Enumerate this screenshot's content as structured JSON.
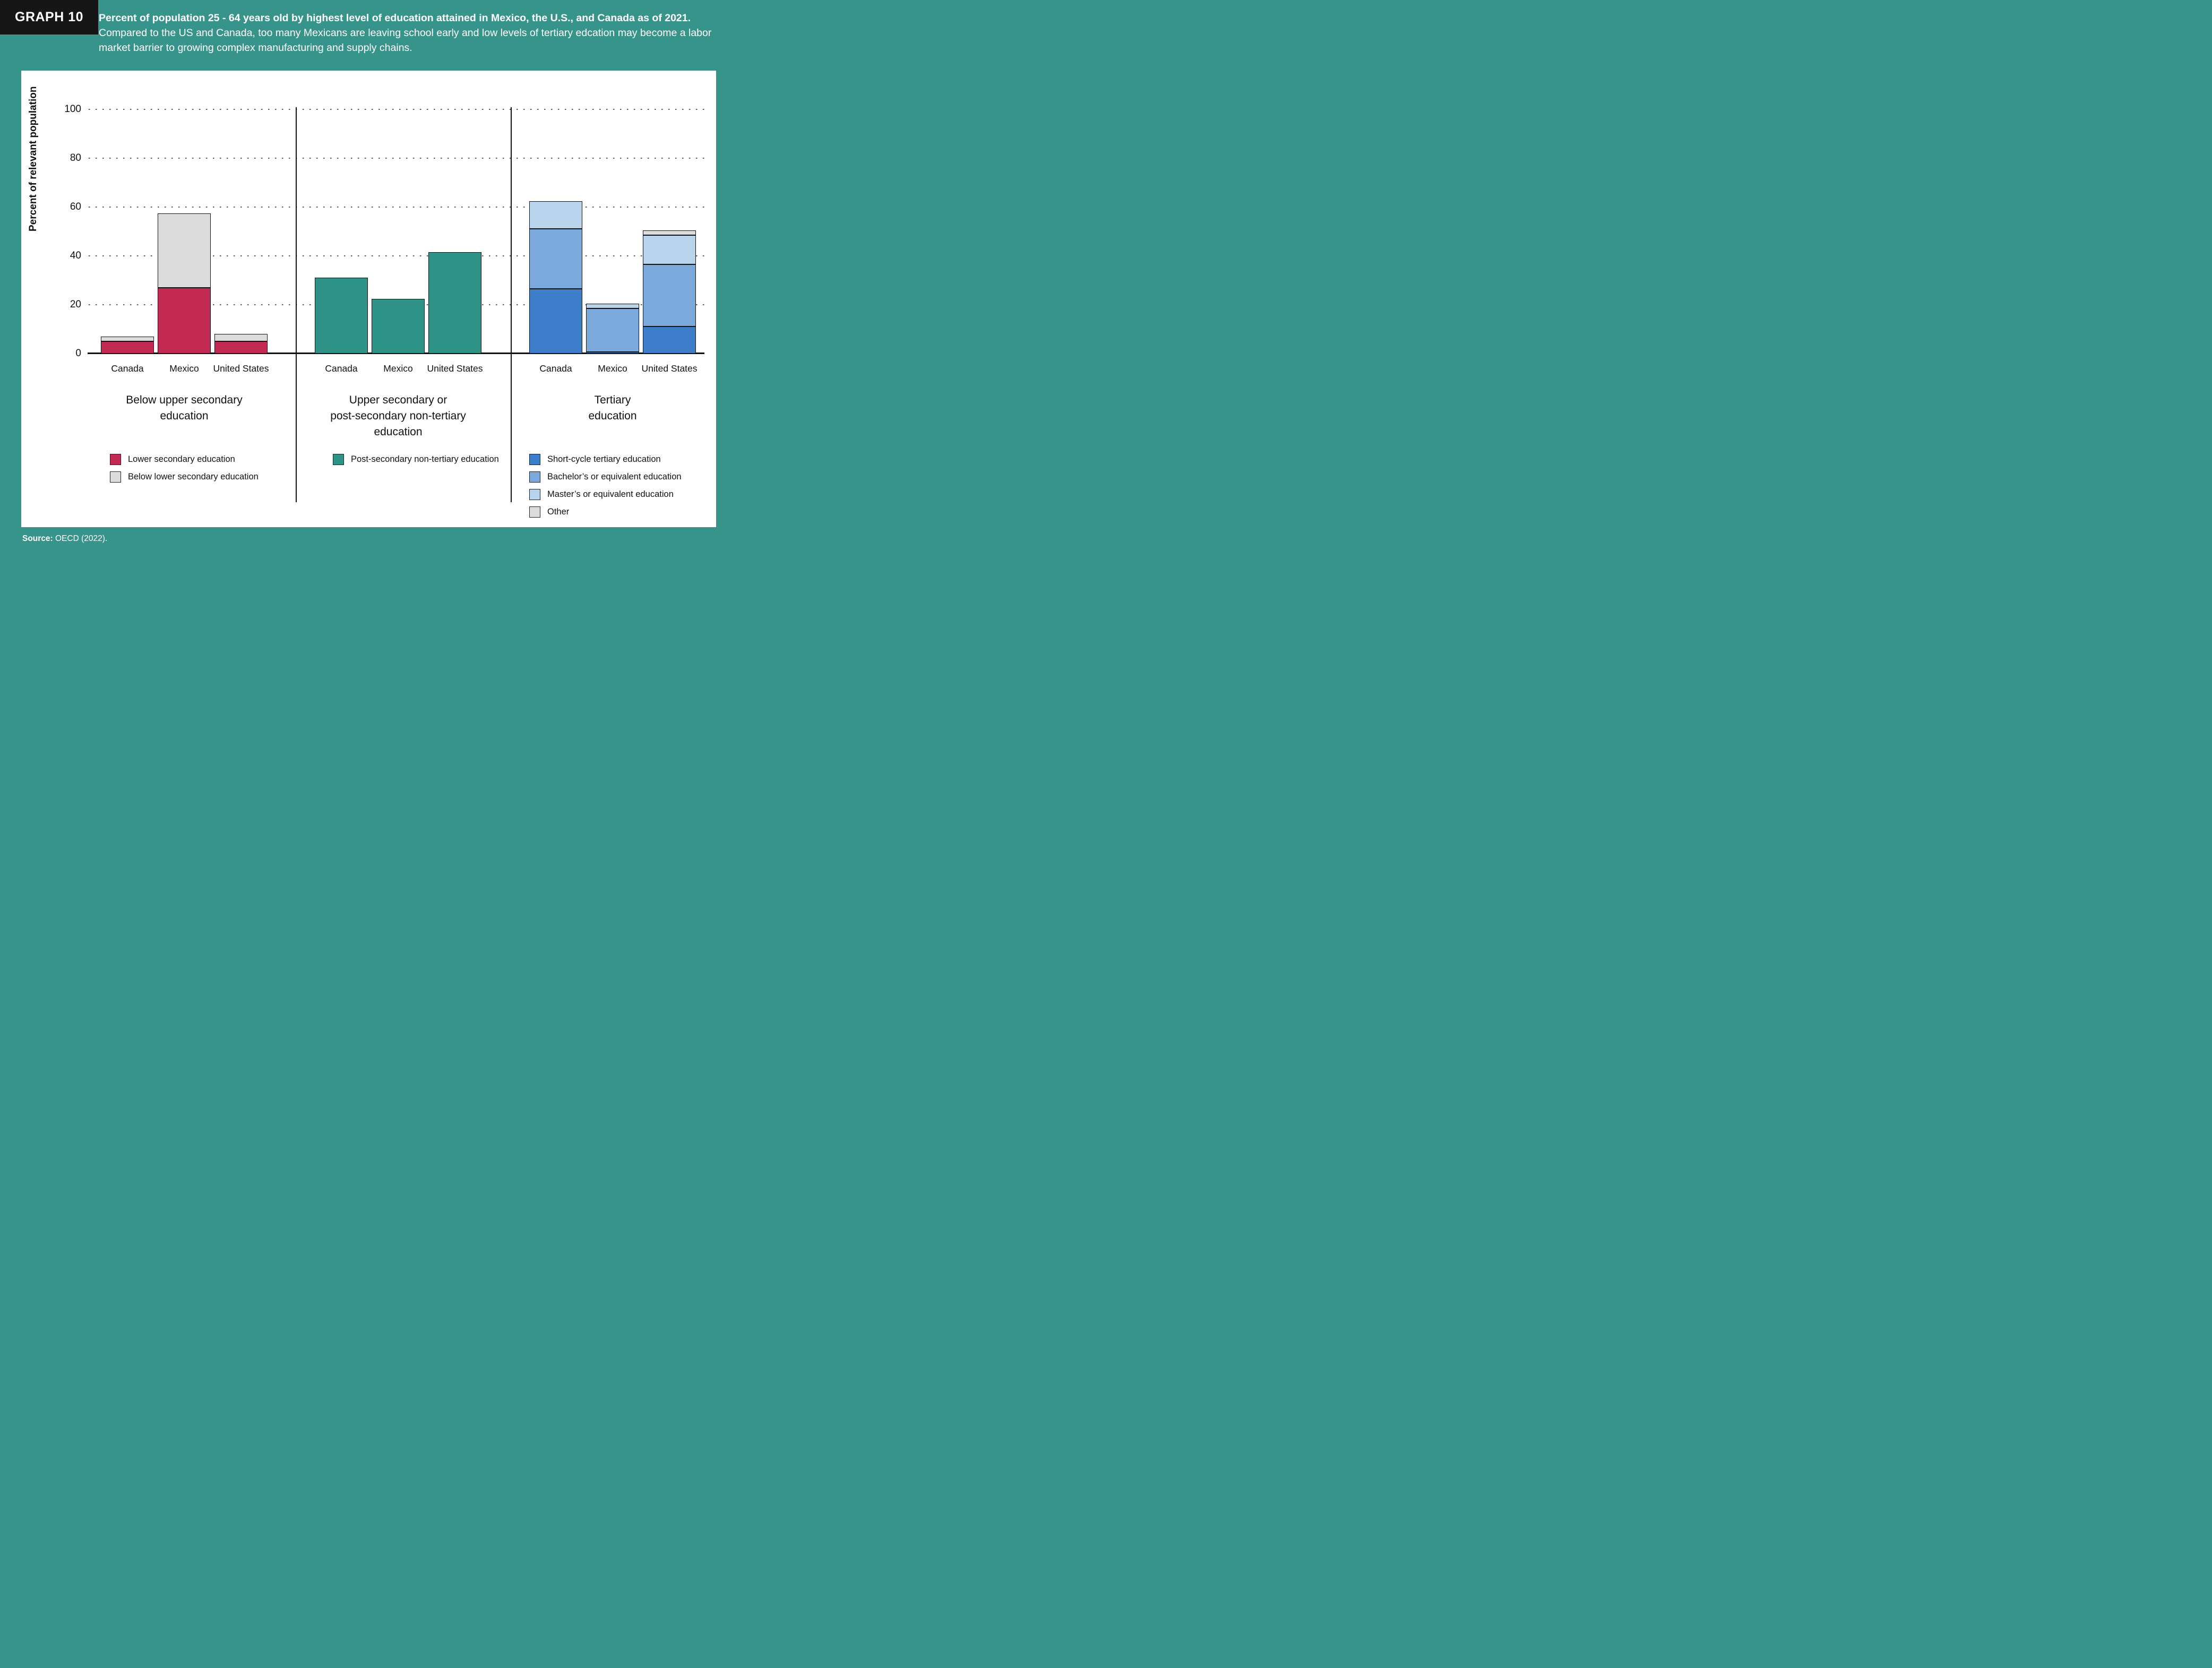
{
  "header": {
    "badge": "GRAPH 10",
    "title_bold": "Percent of population 25 - 64 years old by highest level of education attained in Mexico, the U.S., and Canada as of 2021.",
    "title_rest": " Compared to the US and Canada, too many Mexicans are leaving school early and low levels of tertiary edcation may become a labor market barrier to growing complex manufacturing and supply chains."
  },
  "source": {
    "label": "Source:",
    "text": " OECD (2022)."
  },
  "chart_data": {
    "type": "bar",
    "stacked": true,
    "ylabel": "Percent of relevant population",
    "ylim": [
      0,
      100
    ],
    "yticks": [
      0,
      20,
      40,
      60,
      80,
      100
    ],
    "gridlines": "dotted-horizontal",
    "legend_position": "below-each-group",
    "categories": [
      "Canada",
      "Mexico",
      "United States"
    ],
    "groups": [
      {
        "title": "Below upper secondary education",
        "title_lines": [
          "Below upper secondary",
          "education"
        ],
        "series": [
          {
            "name": "Lower secondary education",
            "color": "#c22a54",
            "values": [
              5,
              27,
              5
            ]
          },
          {
            "name": "Below lower secondary education",
            "color": "#dcdcdc",
            "values": [
              2,
              30.5,
              3
            ]
          }
        ]
      },
      {
        "title": "Upper secondary or post-secondary non-tertiary education",
        "title_lines": [
          "Upper secondary or",
          "post-secondary non-tertiary",
          "education"
        ],
        "series": [
          {
            "name": "Post-secondary non-tertiary education",
            "color": "#2e9287",
            "values": [
              31,
              22.5,
              41.5
            ]
          }
        ]
      },
      {
        "title": "Tertiary education",
        "title_lines": [
          "Tertiary",
          "education"
        ],
        "series": [
          {
            "name": "Short-cycle tertiary education",
            "color": "#3d7dca",
            "values": [
              26.5,
              0.7,
              11
            ]
          },
          {
            "name": "Bachelor’s or equivalent education",
            "color": "#7ca9dc",
            "values": [
              24.5,
              17.8,
              25.5
            ]
          },
          {
            "name": "Master’s or equivalent education",
            "color": "#bad3ec",
            "values": [
              11.5,
              2,
              12
            ]
          },
          {
            "name": "Other",
            "color": "#dcdcdc",
            "values": [
              0,
              0,
              2
            ]
          }
        ]
      }
    ]
  }
}
